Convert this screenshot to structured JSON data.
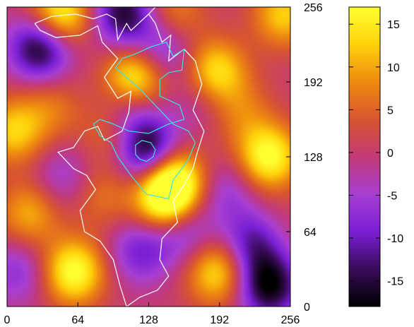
{
  "chart_data": [
    {
      "type": "heatmap",
      "title": "",
      "xlabel": "",
      "ylabel": "",
      "xlim": [
        0,
        256
      ],
      "ylim": [
        0,
        256
      ],
      "x_ticks": [
        0,
        64,
        128,
        192,
        256
      ],
      "y_ticks": [
        0,
        64,
        128,
        192,
        256
      ],
      "y_axis_side": "right",
      "grid": false,
      "colormap": [
        "#000000",
        "#3a0b5a",
        "#7a1fd6",
        "#a83ed2",
        "#c23a78",
        "#d9552e",
        "#ee8a10",
        "#ffd20a",
        "#ffff30"
      ],
      "value_range": [
        -18,
        17
      ],
      "peaks": [
        {
          "x": 116,
          "y": 196,
          "v": 17
        },
        {
          "x": 188,
          "y": 200,
          "v": 15
        },
        {
          "x": 150,
          "y": 110,
          "v": 17
        },
        {
          "x": 142,
          "y": 92,
          "v": 17
        },
        {
          "x": 236,
          "y": 128,
          "v": 17
        },
        {
          "x": 60,
          "y": 30,
          "v": 17
        },
        {
          "x": 190,
          "y": 30,
          "v": 14
        },
        {
          "x": 48,
          "y": 250,
          "v": 17
        },
        {
          "x": 250,
          "y": 250,
          "v": 12
        },
        {
          "x": 150,
          "y": 250,
          "v": 8
        },
        {
          "x": 6,
          "y": 150,
          "v": 12
        },
        {
          "x": 20,
          "y": 80,
          "v": 10
        },
        {
          "x": 230,
          "y": 60,
          "v": 8
        },
        {
          "x": 96,
          "y": 150,
          "v": 8
        },
        {
          "x": 212,
          "y": 166,
          "v": 6
        },
        {
          "x": 85,
          "y": 95,
          "v": 6
        },
        {
          "x": 40,
          "y": 170,
          "v": 6
        },
        {
          "x": 30,
          "y": 222,
          "v": -17
        },
        {
          "x": 105,
          "y": 250,
          "v": -15
        },
        {
          "x": 128,
          "y": 132,
          "v": -18
        },
        {
          "x": 224,
          "y": 56,
          "v": -18
        },
        {
          "x": 236,
          "y": 18,
          "v": -17
        },
        {
          "x": 120,
          "y": 48,
          "v": -9
        },
        {
          "x": 160,
          "y": 64,
          "v": -8
        },
        {
          "x": 110,
          "y": 165,
          "v": -9
        },
        {
          "x": 140,
          "y": 220,
          "v": -10
        },
        {
          "x": 50,
          "y": 110,
          "v": -6
        },
        {
          "x": 10,
          "y": 30,
          "v": -7
        },
        {
          "x": 200,
          "y": 100,
          "v": -6
        },
        {
          "x": 176,
          "y": 180,
          "v": -5
        }
      ],
      "contours": [
        {
          "level": "white",
          "color": "#ffffff",
          "points": [
            [
              25,
              242
            ],
            [
              40,
              248
            ],
            [
              62,
              250
            ],
            [
              78,
              246
            ],
            [
              90,
              250
            ],
            [
              98,
              246
            ],
            [
              100,
              228
            ],
            [
              108,
              242
            ],
            [
              112,
              236
            ],
            [
              128,
              250
            ],
            [
              134,
              242
            ],
            [
              140,
              226
            ],
            [
              148,
              232
            ],
            [
              146,
              210
            ],
            [
              160,
              220
            ],
            [
              170,
              210
            ],
            [
              176,
              190
            ],
            [
              168,
              168
            ],
            [
              178,
              150
            ],
            [
              172,
              132
            ],
            [
              168,
              118
            ],
            [
              160,
              104
            ],
            [
              150,
              90
            ],
            [
              154,
              72
            ],
            [
              140,
              58
            ],
            [
              138,
              40
            ],
            [
              146,
              26
            ],
            [
              136,
              14
            ],
            [
              120,
              8
            ],
            [
              108,
              0
            ],
            [
              102,
              18
            ],
            [
              96,
              40
            ],
            [
              84,
              56
            ],
            [
              70,
              64
            ],
            [
              66,
              82
            ],
            [
              80,
              100
            ],
            [
              72,
              112
            ],
            [
              60,
              118
            ],
            [
              46,
              132
            ],
            [
              60,
              136
            ],
            [
              70,
              150
            ],
            [
              82,
              154
            ],
            [
              88,
              142
            ],
            [
              104,
              150
            ],
            [
              110,
              166
            ],
            [
              112,
              184
            ],
            [
              100,
              178
            ],
            [
              88,
              196
            ],
            [
              100,
              212
            ],
            [
              86,
              226
            ],
            [
              82,
              240
            ],
            [
              66,
              232
            ],
            [
              44,
              230
            ],
            [
              30,
              236
            ],
            [
              25,
              242
            ]
          ]
        },
        {
          "level": "cyan",
          "color": "#40e0e0",
          "points": [
            [
              78,
              156
            ],
            [
              84,
              146
            ],
            [
              94,
              140
            ],
            [
              100,
              128
            ],
            [
              112,
              112
            ],
            [
              126,
              96
            ],
            [
              146,
              92
            ],
            [
              150,
              108
            ],
            [
              158,
              118
            ],
            [
              164,
              126
            ],
            [
              170,
              140
            ],
            [
              164,
              150
            ],
            [
              150,
              156
            ],
            [
              140,
              166
            ],
            [
              130,
              176
            ],
            [
              120,
              186
            ],
            [
              108,
              196
            ],
            [
              98,
              204
            ],
            [
              104,
              212
            ],
            [
              116,
              216
            ],
            [
              130,
              222
            ],
            [
              144,
              226
            ],
            [
              150,
              214
            ],
            [
              160,
              220
            ],
            [
              158,
              202
            ],
            [
              146,
              200
            ],
            [
              138,
              194
            ],
            [
              138,
              180
            ],
            [
              156,
              172
            ],
            [
              160,
              160
            ],
            [
              146,
              156
            ],
            [
              128,
              148
            ],
            [
              110,
              150
            ],
            [
              96,
              156
            ],
            [
              84,
              160
            ],
            [
              78,
              156
            ]
          ]
        },
        {
          "level": "cyan-inner",
          "color": "#40e0e0",
          "points": [
            [
              116,
              130
            ],
            [
              120,
              126
            ],
            [
              126,
              124
            ],
            [
              132,
              128
            ],
            [
              134,
              134
            ],
            [
              130,
              140
            ],
            [
              122,
              142
            ],
            [
              116,
              138
            ],
            [
              116,
              130
            ]
          ]
        },
        {
          "level": "white-right",
          "color": "#ffffff",
          "points": [
            [
              128,
              250
            ],
            [
              134,
              256
            ]
          ]
        }
      ]
    },
    {
      "type": "colorbar",
      "range": [
        -18,
        17
      ],
      "ticks": [
        15,
        10,
        5,
        0,
        -5,
        -10,
        -15
      ],
      "tick_labels": [
        "15",
        "10",
        "5",
        "0",
        "-5",
        "-10",
        "-15"
      ]
    }
  ]
}
